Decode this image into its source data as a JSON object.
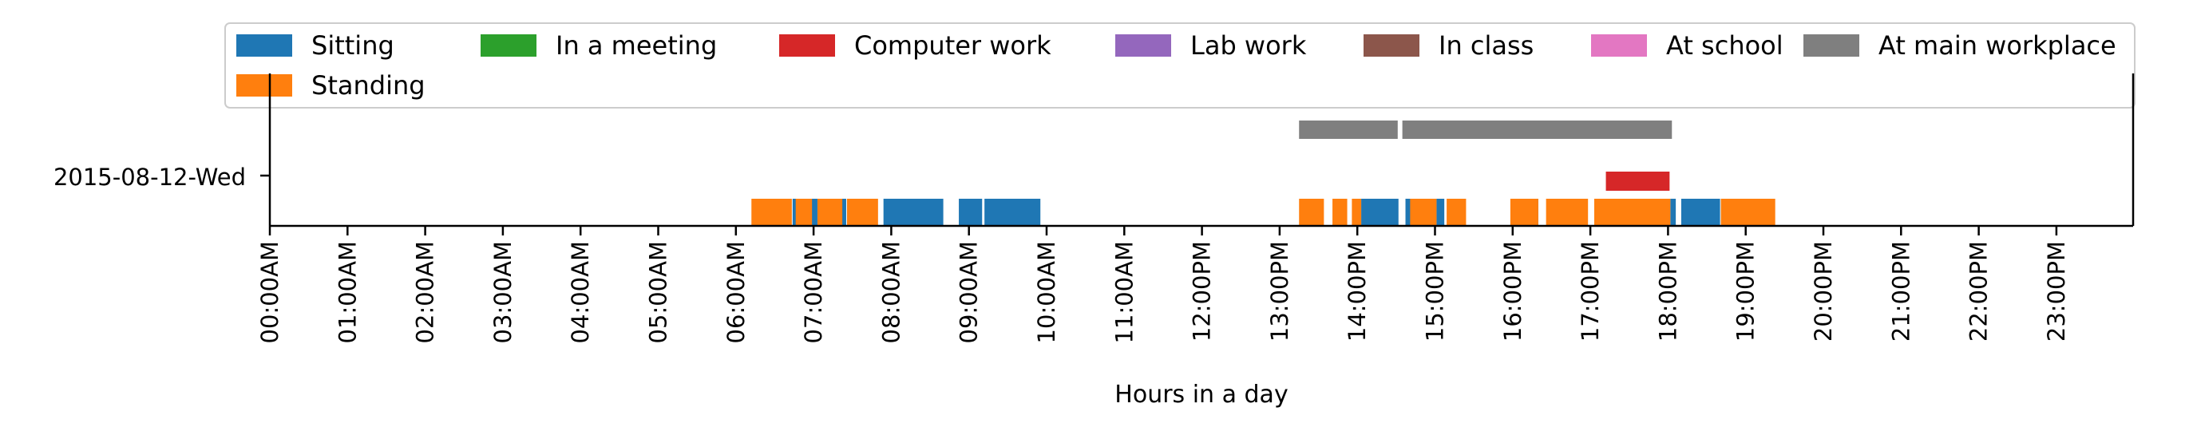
{
  "chart_data": {
    "type": "timeline",
    "xlabel": "Hours in a day",
    "xlim": [
      0,
      24
    ],
    "row_label": "2015-08-12-Wed",
    "x_ticks": [
      "00:00AM",
      "01:00AM",
      "02:00AM",
      "03:00AM",
      "04:00AM",
      "05:00AM",
      "06:00AM",
      "07:00AM",
      "08:00AM",
      "09:00AM",
      "10:00AM",
      "11:00AM",
      "12:00PM",
      "13:00PM",
      "14:00PM",
      "15:00PM",
      "16:00PM",
      "17:00PM",
      "18:00PM",
      "19:00PM",
      "20:00PM",
      "21:00PM",
      "22:00PM",
      "23:00PM"
    ],
    "legend_position": "top",
    "legend": [
      {
        "name": "Sitting",
        "color": "#1f77b4"
      },
      {
        "name": "Standing",
        "color": "#ff7f0e"
      },
      {
        "name": "In a meeting",
        "color": "#2ca02c"
      },
      {
        "name": "Computer work",
        "color": "#d62728"
      },
      {
        "name": "Lab work",
        "color": "#9467bd"
      },
      {
        "name": "In class",
        "color": "#8c564b"
      },
      {
        "name": "At school",
        "color": "#e377c2"
      },
      {
        "name": "At main workplace",
        "color": "#7f7f7f"
      }
    ],
    "series": [
      {
        "name": "Sitting",
        "intervals": [
          [
            6.73,
            6.8
          ],
          [
            6.93,
            7.05
          ],
          [
            7.3,
            7.42
          ],
          [
            7.9,
            8.67
          ],
          [
            8.87,
            9.17
          ],
          [
            9.2,
            9.92
          ],
          [
            14.05,
            14.53
          ],
          [
            14.62,
            14.7
          ],
          [
            15.02,
            15.12
          ],
          [
            16.22,
            16.33
          ],
          [
            18.03,
            18.1
          ],
          [
            18.17,
            18.67
          ]
        ]
      },
      {
        "name": "Standing",
        "intervals": [
          [
            6.2,
            6.72
          ],
          [
            6.77,
            6.98
          ],
          [
            7.05,
            7.37
          ],
          [
            7.43,
            7.83
          ],
          [
            13.25,
            13.57
          ],
          [
            13.68,
            13.87
          ],
          [
            13.93,
            14.05
          ],
          [
            14.68,
            15.02
          ],
          [
            15.15,
            15.4
          ],
          [
            15.97,
            16.33
          ],
          [
            16.43,
            16.97
          ],
          [
            17.05,
            18.03
          ],
          [
            18.68,
            19.38
          ]
        ]
      },
      {
        "name": "Computer work",
        "intervals": [
          [
            17.2,
            18.02
          ]
        ]
      },
      {
        "name": "At main workplace",
        "intervals": [
          [
            13.25,
            14.52
          ],
          [
            14.58,
            18.05
          ]
        ]
      }
    ],
    "levels": {
      "Sitting": 0,
      "Standing": 0,
      "Computer work": 1,
      "At main workplace": 2
    }
  }
}
